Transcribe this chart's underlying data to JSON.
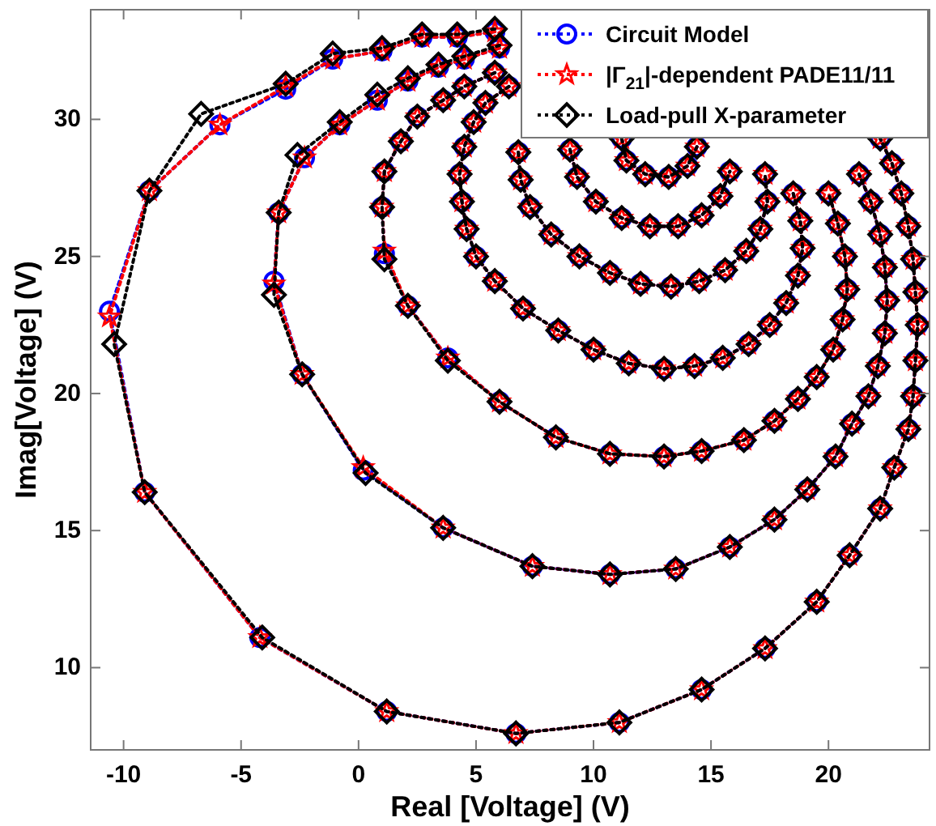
{
  "chart_data": {
    "type": "line",
    "xlabel": "Real [Voltage] (V)",
    "ylabel": "Imag[Voltage] (V)",
    "xlim": [
      -11.4,
      24.3
    ],
    "ylim": [
      7,
      34
    ],
    "xticks": [
      -10,
      -5,
      0,
      5,
      10,
      15,
      20
    ],
    "yticks": [
      10,
      15,
      20,
      25,
      30
    ],
    "grid": false,
    "legend": "top right",
    "line_style": "dotted",
    "series": [
      {
        "name": "Circuit Model",
        "color": "#0000ff",
        "marker": "circle",
        "x": [
          5.8,
          4.2,
          2.7,
          1.0,
          -1.1,
          -3.1,
          -5.9,
          -8.9,
          -10.6,
          -9.1,
          -4.2,
          1.2,
          6.7,
          11.1,
          14.6,
          17.3,
          19.5,
          20.9,
          22.2,
          22.8,
          23.4,
          23.6,
          23.7,
          23.8,
          23.7,
          23.6,
          23.4,
          23.1,
          22.7,
          22.2,
          null,
          6.0,
          4.5,
          3.4,
          2.1,
          0.8,
          -0.8,
          -2.3,
          -3.4,
          -3.6,
          -2.4,
          0.2,
          3.6,
          7.4,
          10.7,
          13.5,
          15.8,
          17.7,
          19.1,
          20.3,
          21.0,
          21.7,
          22.1,
          22.4,
          22.5,
          22.4,
          22.2,
          21.8,
          21.3,
          null,
          5.8,
          4.5,
          3.6,
          2.5,
          1.8,
          1.1,
          1.0,
          1.1,
          2.1,
          3.8,
          6.0,
          8.4,
          10.7,
          13.0,
          14.6,
          16.4,
          17.7,
          18.7,
          19.5,
          20.2,
          20.6,
          20.8,
          20.7,
          20.4,
          20.0,
          null,
          6.4,
          5.4,
          4.9,
          4.5,
          4.3,
          4.4,
          4.6,
          5.0,
          5.8,
          7.0,
          8.5,
          10.0,
          11.5,
          13.0,
          14.3,
          15.5,
          16.6,
          17.5,
          18.2,
          18.7,
          18.9,
          18.8,
          18.5,
          null,
          6.8,
          6.9,
          7.3,
          8.2,
          9.4,
          10.7,
          12.0,
          13.3,
          14.5,
          15.6,
          16.5,
          17.1,
          17.4,
          17.3,
          null,
          9.0,
          9.3,
          10.1,
          11.2,
          12.4,
          13.6,
          14.6,
          15.4,
          15.8,
          null,
          11.2,
          11.4,
          12.2,
          13.2,
          14.0,
          14.4
        ],
        "values": [
          33.2,
          33.0,
          33.0,
          32.5,
          32.2,
          31.1,
          29.8,
          27.4,
          23.0,
          16.4,
          11.1,
          8.4,
          7.6,
          8.0,
          9.2,
          10.7,
          12.4,
          14.1,
          15.8,
          17.3,
          18.7,
          19.9,
          21.2,
          22.5,
          23.7,
          24.9,
          26.1,
          27.3,
          28.4,
          29.3,
          null,
          32.6,
          32.2,
          31.9,
          31.4,
          30.7,
          29.8,
          28.6,
          26.6,
          24.1,
          20.7,
          17.2,
          15.1,
          13.7,
          13.4,
          13.6,
          14.4,
          15.4,
          16.5,
          17.7,
          18.9,
          19.9,
          21.0,
          22.2,
          23.4,
          24.6,
          25.8,
          27.0,
          28.0,
          null,
          31.7,
          31.2,
          30.7,
          30.1,
          29.2,
          28.1,
          26.8,
          25.1,
          23.2,
          21.3,
          19.7,
          18.4,
          17.8,
          17.7,
          17.9,
          18.3,
          19.0,
          19.8,
          20.6,
          21.6,
          22.7,
          23.8,
          25.0,
          26.2,
          27.3,
          null,
          31.2,
          30.6,
          29.9,
          29.0,
          28.0,
          27.0,
          26.0,
          25.0,
          24.1,
          23.1,
          22.3,
          21.6,
          21.1,
          20.9,
          21.0,
          21.3,
          21.8,
          22.5,
          23.3,
          24.3,
          25.3,
          26.3,
          27.3,
          null,
          28.8,
          27.8,
          26.8,
          25.8,
          25.0,
          24.4,
          24.0,
          23.9,
          24.1,
          24.5,
          25.2,
          26.0,
          27.0,
          28.0,
          null,
          28.9,
          27.9,
          27.0,
          26.4,
          26.1,
          26.1,
          26.5,
          27.2,
          28.1,
          null,
          29.3,
          28.5,
          28.0,
          27.9,
          28.3,
          29.0
        ]
      },
      {
        "name": "|Γ$_{21}$|-dependent PADE11/11",
        "color": "#ff0000",
        "marker": "star",
        "x": [
          5.8,
          4.2,
          2.7,
          1.0,
          -1.1,
          -3.1,
          -5.9,
          -8.9,
          -10.6,
          -9.1,
          -4.2,
          1.2,
          6.7,
          11.1,
          14.6,
          17.3,
          19.5,
          20.9,
          22.2,
          22.8,
          23.4,
          23.6,
          23.7,
          23.8,
          23.7,
          23.6,
          23.4,
          23.1,
          22.7,
          22.2,
          null,
          6.0,
          4.5,
          3.4,
          2.1,
          0.8,
          -0.8,
          -2.3,
          -3.4,
          -3.6,
          -2.4,
          0.2,
          3.6,
          7.4,
          10.7,
          13.5,
          15.8,
          17.7,
          19.1,
          20.3,
          21.0,
          21.7,
          22.1,
          22.4,
          22.5,
          22.4,
          22.2,
          21.8,
          21.3,
          null,
          5.8,
          4.5,
          3.6,
          2.5,
          1.8,
          1.1,
          1.0,
          1.1,
          2.1,
          3.8,
          6.0,
          8.4,
          10.7,
          13.0,
          14.6,
          16.4,
          17.7,
          18.7,
          19.5,
          20.2,
          20.6,
          20.8,
          20.7,
          20.4,
          20.0,
          null,
          6.4,
          5.4,
          4.9,
          4.5,
          4.3,
          4.4,
          4.6,
          5.0,
          5.8,
          7.0,
          8.5,
          10.0,
          11.5,
          13.0,
          14.3,
          15.5,
          16.6,
          17.5,
          18.2,
          18.7,
          18.9,
          18.8,
          18.5,
          null,
          6.8,
          6.9,
          7.3,
          8.2,
          9.4,
          10.7,
          12.0,
          13.3,
          14.5,
          15.6,
          16.5,
          17.1,
          17.4,
          17.3,
          null,
          9.0,
          9.3,
          10.1,
          11.2,
          12.4,
          13.6,
          14.6,
          15.4,
          15.8,
          null,
          11.2,
          11.4,
          12.2,
          13.2,
          14.0,
          14.4
        ],
        "values": [
          33.2,
          33.0,
          33.0,
          32.5,
          32.2,
          31.2,
          29.8,
          27.4,
          22.8,
          16.4,
          11.1,
          8.4,
          7.6,
          8.0,
          9.2,
          10.7,
          12.4,
          14.1,
          15.8,
          17.3,
          18.7,
          19.9,
          21.2,
          22.5,
          23.7,
          24.9,
          26.1,
          27.3,
          28.4,
          29.3,
          null,
          32.6,
          32.2,
          31.9,
          31.4,
          30.7,
          29.8,
          28.6,
          26.6,
          24.0,
          20.7,
          17.3,
          15.1,
          13.7,
          13.4,
          13.6,
          14.4,
          15.4,
          16.5,
          17.7,
          18.9,
          19.9,
          21.0,
          22.2,
          23.4,
          24.6,
          25.8,
          27.0,
          28.0,
          null,
          31.7,
          31.2,
          30.7,
          30.1,
          29.2,
          28.1,
          26.8,
          25.2,
          23.2,
          21.3,
          19.7,
          18.4,
          17.8,
          17.7,
          17.9,
          18.3,
          19.0,
          19.8,
          20.6,
          21.6,
          22.7,
          23.8,
          25.0,
          26.2,
          27.3,
          null,
          31.2,
          30.6,
          29.9,
          29.0,
          28.0,
          27.0,
          26.0,
          25.0,
          24.1,
          23.1,
          22.3,
          21.6,
          21.1,
          20.9,
          21.0,
          21.3,
          21.8,
          22.5,
          23.3,
          24.3,
          25.3,
          26.3,
          27.3,
          null,
          28.8,
          27.8,
          26.8,
          25.8,
          25.0,
          24.4,
          24.0,
          23.9,
          24.1,
          24.5,
          25.2,
          26.0,
          27.0,
          28.0,
          null,
          28.9,
          27.9,
          27.0,
          26.4,
          26.1,
          26.1,
          26.5,
          27.2,
          28.1,
          null,
          29.3,
          28.5,
          28.0,
          27.9,
          28.3,
          29.0
        ]
      },
      {
        "name": "Load-pull X-parameter",
        "color": "#000000",
        "marker": "diamond",
        "x": [
          5.8,
          4.2,
          2.7,
          1.0,
          -1.1,
          -3.1,
          -6.7,
          -8.9,
          -10.4,
          -9.1,
          -4.1,
          1.2,
          6.7,
          11.1,
          14.6,
          17.3,
          19.5,
          20.9,
          22.2,
          22.8,
          23.4,
          23.6,
          23.7,
          23.8,
          23.7,
          23.6,
          23.4,
          23.1,
          22.7,
          22.2,
          null,
          6.0,
          4.5,
          3.4,
          2.1,
          0.8,
          -0.8,
          -2.6,
          -3.4,
          -3.6,
          -2.4,
          0.3,
          3.6,
          7.4,
          10.7,
          13.5,
          15.8,
          17.7,
          19.1,
          20.3,
          21.0,
          21.7,
          22.1,
          22.4,
          22.5,
          22.4,
          22.2,
          21.8,
          21.3,
          null,
          5.8,
          4.5,
          3.6,
          2.5,
          1.8,
          1.1,
          1.0,
          1.1,
          2.1,
          3.8,
          6.0,
          8.4,
          10.7,
          13.0,
          14.6,
          16.4,
          17.7,
          18.7,
          19.5,
          20.2,
          20.6,
          20.8,
          20.7,
          20.4,
          20.0,
          null,
          6.4,
          5.4,
          4.9,
          4.5,
          4.3,
          4.4,
          4.6,
          5.0,
          5.8,
          7.0,
          8.5,
          10.0,
          11.5,
          13.0,
          14.3,
          15.5,
          16.6,
          17.5,
          18.2,
          18.7,
          18.9,
          18.8,
          18.5,
          null,
          6.8,
          6.9,
          7.3,
          8.2,
          9.4,
          10.7,
          12.0,
          13.3,
          14.5,
          15.6,
          16.5,
          17.1,
          17.4,
          17.3,
          null,
          9.0,
          9.3,
          10.1,
          11.2,
          12.4,
          13.6,
          14.6,
          15.4,
          15.8,
          null,
          11.2,
          11.4,
          12.2,
          13.2,
          14.0,
          14.4
        ],
        "values": [
          33.3,
          33.1,
          33.1,
          32.6,
          32.4,
          31.3,
          30.2,
          27.4,
          21.8,
          16.4,
          11.1,
          8.4,
          7.6,
          8.0,
          9.2,
          10.7,
          12.4,
          14.1,
          15.8,
          17.3,
          18.7,
          19.9,
          21.2,
          22.5,
          23.7,
          24.9,
          26.1,
          27.3,
          28.4,
          29.3,
          null,
          32.7,
          32.3,
          32.0,
          31.5,
          30.9,
          29.9,
          28.7,
          26.6,
          23.6,
          20.7,
          17.1,
          15.1,
          13.7,
          13.4,
          13.6,
          14.4,
          15.4,
          16.5,
          17.7,
          18.9,
          19.9,
          21.0,
          22.2,
          23.4,
          24.6,
          25.8,
          27.0,
          28.0,
          null,
          31.7,
          31.2,
          30.7,
          30.1,
          29.2,
          28.1,
          26.8,
          24.9,
          23.2,
          21.2,
          19.7,
          18.4,
          17.8,
          17.7,
          17.9,
          18.3,
          19.0,
          19.8,
          20.6,
          21.6,
          22.7,
          23.8,
          25.0,
          26.2,
          27.3,
          null,
          31.2,
          30.6,
          29.9,
          29.0,
          28.0,
          27.0,
          26.0,
          25.0,
          24.1,
          23.1,
          22.3,
          21.6,
          21.1,
          20.9,
          21.0,
          21.3,
          21.8,
          22.5,
          23.3,
          24.3,
          25.3,
          26.3,
          27.3,
          null,
          28.8,
          27.8,
          26.8,
          25.8,
          25.0,
          24.4,
          24.0,
          23.9,
          24.1,
          24.5,
          25.2,
          26.0,
          27.0,
          28.0,
          null,
          28.9,
          27.9,
          27.0,
          26.4,
          26.1,
          26.1,
          26.5,
          27.2,
          28.1,
          null,
          29.3,
          28.5,
          28.0,
          27.9,
          28.3,
          29.0
        ]
      }
    ]
  }
}
